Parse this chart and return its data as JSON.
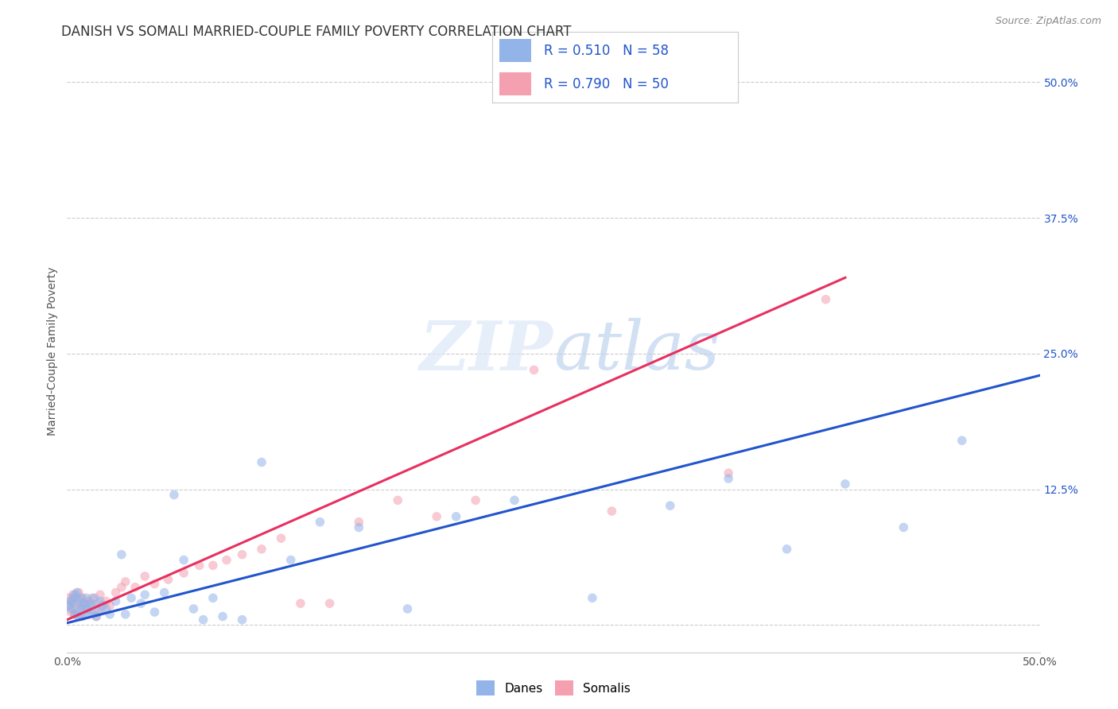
{
  "title": "DANISH VS SOMALI MARRIED-COUPLE FAMILY POVERTY CORRELATION CHART",
  "source": "Source: ZipAtlas.com",
  "ylabel": "Married-Couple Family Poverty",
  "xlim": [
    0,
    0.5
  ],
  "ylim": [
    -0.025,
    0.53
  ],
  "legend_r_danish": "0.510",
  "legend_n_danish": "58",
  "legend_r_somali": "0.790",
  "legend_n_somali": "50",
  "danish_color": "#92b4e8",
  "somali_color": "#f4a0b0",
  "danish_line_color": "#2255cc",
  "somali_line_color": "#e83060",
  "legend_text_color": "#2255cc",
  "background_color": "#ffffff",
  "watermark_zip": "ZIP",
  "watermark_atlas": "atlas",
  "grid_color": "#cccccc",
  "title_fontsize": 12,
  "axis_label_fontsize": 10,
  "tick_fontsize": 10,
  "marker_size": 70,
  "marker_alpha": 0.55,
  "line_width": 2.2,
  "danes_x": [
    0.001,
    0.002,
    0.002,
    0.003,
    0.003,
    0.004,
    0.004,
    0.005,
    0.005,
    0.006,
    0.006,
    0.007,
    0.007,
    0.008,
    0.008,
    0.009,
    0.01,
    0.01,
    0.011,
    0.012,
    0.012,
    0.013,
    0.014,
    0.015,
    0.016,
    0.017,
    0.018,
    0.02,
    0.022,
    0.025,
    0.028,
    0.03,
    0.033,
    0.038,
    0.04,
    0.045,
    0.05,
    0.055,
    0.06,
    0.065,
    0.07,
    0.075,
    0.08,
    0.09,
    0.1,
    0.115,
    0.13,
    0.15,
    0.175,
    0.2,
    0.23,
    0.27,
    0.31,
    0.34,
    0.37,
    0.4,
    0.43,
    0.46
  ],
  "danes_y": [
    0.018,
    0.022,
    0.015,
    0.02,
    0.025,
    0.01,
    0.028,
    0.012,
    0.03,
    0.008,
    0.022,
    0.015,
    0.025,
    0.018,
    0.008,
    0.02,
    0.015,
    0.025,
    0.01,
    0.02,
    0.012,
    0.018,
    0.025,
    0.008,
    0.012,
    0.022,
    0.018,
    0.015,
    0.01,
    0.022,
    0.065,
    0.01,
    0.025,
    0.02,
    0.028,
    0.012,
    0.03,
    0.12,
    0.06,
    0.015,
    0.005,
    0.025,
    0.008,
    0.005,
    0.15,
    0.06,
    0.095,
    0.09,
    0.015,
    0.1,
    0.115,
    0.025,
    0.11,
    0.135,
    0.07,
    0.13,
    0.09,
    0.17
  ],
  "somalis_x": [
    0.001,
    0.001,
    0.002,
    0.002,
    0.003,
    0.003,
    0.004,
    0.005,
    0.005,
    0.006,
    0.007,
    0.007,
    0.008,
    0.008,
    0.009,
    0.01,
    0.011,
    0.012,
    0.013,
    0.014,
    0.015,
    0.016,
    0.017,
    0.018,
    0.02,
    0.022,
    0.025,
    0.028,
    0.03,
    0.035,
    0.04,
    0.045,
    0.052,
    0.06,
    0.068,
    0.075,
    0.082,
    0.09,
    0.1,
    0.11,
    0.12,
    0.135,
    0.15,
    0.17,
    0.19,
    0.21,
    0.24,
    0.28,
    0.34,
    0.39
  ],
  "somalis_y": [
    0.018,
    0.025,
    0.012,
    0.022,
    0.015,
    0.028,
    0.01,
    0.02,
    0.025,
    0.03,
    0.008,
    0.018,
    0.015,
    0.025,
    0.02,
    0.015,
    0.022,
    0.018,
    0.025,
    0.012,
    0.008,
    0.02,
    0.028,
    0.015,
    0.022,
    0.018,
    0.03,
    0.035,
    0.04,
    0.035,
    0.045,
    0.038,
    0.042,
    0.048,
    0.055,
    0.055,
    0.06,
    0.065,
    0.07,
    0.08,
    0.02,
    0.02,
    0.095,
    0.115,
    0.1,
    0.115,
    0.235,
    0.105,
    0.14,
    0.3
  ],
  "danes_line_x0": 0.0,
  "danes_line_y0": 0.002,
  "danes_line_x1": 0.5,
  "danes_line_y1": 0.23,
  "somalis_line_x0": 0.0,
  "somalis_line_y0": 0.005,
  "somalis_line_x1": 0.4,
  "somalis_line_y1": 0.32
}
